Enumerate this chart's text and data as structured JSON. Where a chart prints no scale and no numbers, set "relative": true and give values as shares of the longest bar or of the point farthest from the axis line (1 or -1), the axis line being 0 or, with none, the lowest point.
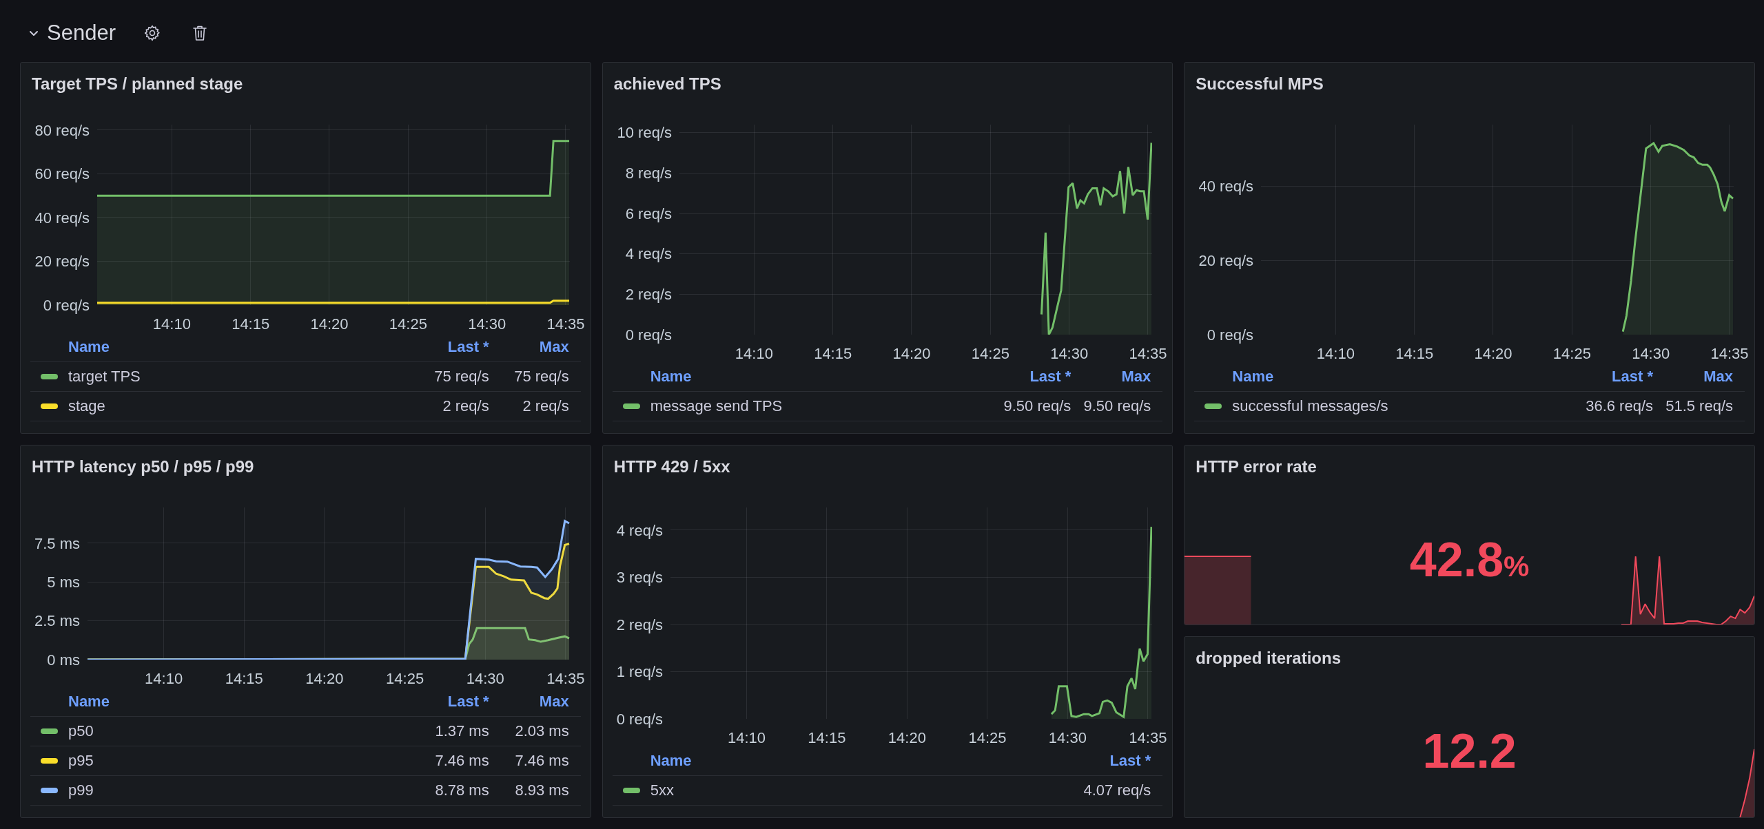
{
  "chart_data": [
    {
      "type": "other",
      "title": "Sender"
    },
    {
      "type": "area",
      "title": "Target TPS / planned stage",
      "series": [
        {
          "name": "target TPS",
          "color": "#73bf69",
          "x": [
            14.0877,
            14.5667,
            14.5703,
            14.587
          ],
          "values": [
            50,
            50,
            75,
            75
          ]
        },
        {
          "name": "stage",
          "color": "#fade2a",
          "x": [
            14.0877,
            14.5667,
            14.5703,
            14.587
          ],
          "values": [
            1,
            1,
            2,
            2
          ]
        }
      ],
      "xlim": [
        14.0877,
        14.5877
      ],
      "xticks": [
        {
          "value": 14.1667,
          "label": "14:10"
        },
        {
          "value": 14.25,
          "label": "14:15"
        },
        {
          "value": 14.3333,
          "label": "14:20"
        },
        {
          "value": 14.4167,
          "label": "14:25"
        },
        {
          "value": 14.5,
          "label": "14:30"
        },
        {
          "value": 14.5833,
          "label": "14:35"
        }
      ],
      "ylim": [
        0,
        82.5
      ],
      "yticks": [
        {
          "value": 0,
          "label": "0 req/s"
        },
        {
          "value": 20,
          "label": "20 req/s"
        },
        {
          "value": 40,
          "label": "40 req/s"
        },
        {
          "value": 60,
          "label": "60 req/s"
        },
        {
          "value": 80,
          "label": "80 req/s"
        }
      ],
      "grid": true,
      "legend": "bottom",
      "legend_title": "Name",
      "annotations": [
        "Last *",
        "Max",
        "75 req/s",
        "75 req/s",
        "2 req/s",
        "2 req/s"
      ]
    },
    {
      "type": "area",
      "title": "achieved TPS",
      "series": [
        {
          "name": "message send TPS",
          "color": "#73bf69",
          "x": [
            14.4707,
            14.475,
            14.4785,
            14.4823,
            14.4915,
            14.4993,
            14.5037,
            14.5083,
            14.5118,
            14.5158,
            14.5197,
            14.5245,
            14.5292,
            14.533,
            14.5365,
            14.5413,
            14.546,
            14.55,
            14.5538,
            14.5582,
            14.5625,
            14.5672,
            14.5712,
            14.575,
            14.579,
            14.583,
            14.587
          ],
          "values": [
            1.0,
            5.05,
            0,
            0.35,
            2.2,
            7.3,
            7.5,
            6.25,
            6.65,
            6.5,
            6.95,
            7.25,
            7.25,
            6.4,
            7.25,
            7.1,
            6.85,
            6.95,
            8.1,
            6.0,
            8.3,
            6.9,
            7.15,
            7.1,
            7.1,
            5.7,
            9.5
          ]
        }
      ],
      "xlim": [
        14.0877,
        14.5877
      ],
      "xticks": [
        {
          "value": 14.1667,
          "label": "14:10"
        },
        {
          "value": 14.25,
          "label": "14:15"
        },
        {
          "value": 14.3333,
          "label": "14:20"
        },
        {
          "value": 14.4167,
          "label": "14:25"
        },
        {
          "value": 14.5,
          "label": "14:30"
        },
        {
          "value": 14.5833,
          "label": "14:35"
        }
      ],
      "ylim": [
        0,
        10.4
      ],
      "yticks": [
        {
          "value": 0,
          "label": "0 req/s"
        },
        {
          "value": 2,
          "label": "2 req/s"
        },
        {
          "value": 4,
          "label": "4 req/s"
        },
        {
          "value": 6,
          "label": "6 req/s"
        },
        {
          "value": 8,
          "label": "8 req/s"
        },
        {
          "value": 10,
          "label": "10 req/s"
        }
      ],
      "grid": true,
      "legend": "bottom",
      "legend_title": "Name",
      "annotations": [
        "Last *",
        "Max",
        "9.50 req/s",
        "9.50 req/s"
      ]
    },
    {
      "type": "area",
      "title": "Successful MPS",
      "series": [
        {
          "name": "successful messages/s",
          "color": "#73bf69",
          "x": [
            14.4705,
            14.4743,
            14.4792,
            14.4832,
            14.4878,
            14.495,
            14.503,
            14.5082,
            14.5122,
            14.5202,
            14.528,
            14.5348,
            14.5408,
            14.5455,
            14.55,
            14.5547,
            14.5598,
            14.5627,
            14.5667,
            14.5707,
            14.5747,
            14.5782,
            14.583,
            14.587
          ],
          "values": [
            0.8,
            5.1,
            14.6,
            24.5,
            34.5,
            50.1,
            51.5,
            49.2,
            50.8,
            51.2,
            50.6,
            49.7,
            48.2,
            47.7,
            46.2,
            45.7,
            45.7,
            45.0,
            43.0,
            40.5,
            35.7,
            33.2,
            37.5,
            36.6
          ]
        }
      ],
      "xlim": [
        14.0877,
        14.5877
      ],
      "xticks": [
        {
          "value": 14.1667,
          "label": "14:10"
        },
        {
          "value": 14.25,
          "label": "14:15"
        },
        {
          "value": 14.3333,
          "label": "14:20"
        },
        {
          "value": 14.4167,
          "label": "14:25"
        },
        {
          "value": 14.5,
          "label": "14:30"
        },
        {
          "value": 14.5833,
          "label": "14:35"
        }
      ],
      "ylim": [
        0,
        56.5
      ],
      "yticks": [
        {
          "value": 0,
          "label": "0 req/s"
        },
        {
          "value": 20,
          "label": "20 req/s"
        },
        {
          "value": 40,
          "label": "40 req/s"
        }
      ],
      "grid": true,
      "legend": "bottom",
      "legend_title": "Name",
      "annotations": [
        "Last *",
        "Max",
        "36.6 req/s",
        "51.5 req/s"
      ]
    },
    {
      "type": "area",
      "title": "HTTP latency p50 / p95 / p99",
      "series": [
        {
          "name": "p50",
          "color": "#73bf69",
          "x": [
            14.0877,
            14.4793,
            14.4833,
            14.487,
            14.4913,
            14.5413,
            14.5452,
            14.5518,
            14.5575,
            14.5652,
            14.5748,
            14.5825,
            14.587
          ],
          "values": [
            0,
            0.05,
            1.0,
            1.3,
            2.03,
            2.03,
            1.3,
            1.25,
            1.15,
            1.25,
            1.4,
            1.5,
            1.37
          ]
        },
        {
          "name": "p95",
          "color": "#fade2a",
          "x": [
            14.0877,
            14.4793,
            14.4902,
            14.5037,
            14.5113,
            14.519,
            14.5267,
            14.5402,
            14.5478,
            14.5537,
            14.5613,
            14.5652,
            14.571,
            14.5748,
            14.5775,
            14.5825,
            14.587
          ],
          "values": [
            0,
            0.05,
            5.97,
            5.97,
            5.53,
            5.37,
            5.15,
            5.1,
            4.3,
            4.2,
            3.96,
            3.92,
            4.25,
            4.59,
            6.04,
            7.38,
            7.46
          ]
        },
        {
          "name": "p99",
          "color": "#8ab8ff",
          "x": [
            14.0877,
            14.4793,
            14.4902,
            14.5037,
            14.5113,
            14.5228,
            14.5363,
            14.5478,
            14.5537,
            14.5622,
            14.569,
            14.5757,
            14.5825,
            14.587
          ],
          "values": [
            0,
            0.05,
            6.49,
            6.44,
            6.33,
            6.31,
            6.0,
            5.97,
            5.93,
            5.32,
            5.82,
            6.49,
            8.93,
            8.78
          ]
        }
      ],
      "xlim": [
        14.0877,
        14.5877
      ],
      "xticks": [
        {
          "value": 14.1667,
          "label": "14:10"
        },
        {
          "value": 14.25,
          "label": "14:15"
        },
        {
          "value": 14.3333,
          "label": "14:20"
        },
        {
          "value": 14.4167,
          "label": "14:25"
        },
        {
          "value": 14.5,
          "label": "14:30"
        },
        {
          "value": 14.5833,
          "label": "14:35"
        }
      ],
      "ylim": [
        0,
        9.8
      ],
      "yticks": [
        {
          "value": 0,
          "label": "0 ms"
        },
        {
          "value": 2.5,
          "label": "2.5 ms"
        },
        {
          "value": 5,
          "label": "5 ms"
        },
        {
          "value": 7.5,
          "label": "7.5 ms"
        }
      ],
      "grid": true,
      "legend": "bottom",
      "legend_title": "Name",
      "annotations": [
        "Last *",
        "Max",
        "1.37 ms",
        "2.03 ms",
        "7.46 ms",
        "7.46 ms",
        "8.78 ms",
        "8.93 ms"
      ]
    },
    {
      "type": "area",
      "title": "HTTP 429 / 5xx",
      "series": [
        {
          "name": "5xx",
          "color": "#73bf69",
          "x": [
            14.4832,
            14.487,
            14.4908,
            14.4993,
            14.504,
            14.509,
            14.5168,
            14.5218,
            14.5253,
            14.533,
            14.5365,
            14.5412,
            14.5458,
            14.5505,
            14.5582,
            14.562,
            14.5663,
            14.5702,
            14.5748,
            14.5787,
            14.583,
            14.587
          ],
          "values": [
            0.1,
            0.18,
            0.69,
            0.69,
            0.06,
            0.04,
            0.1,
            0.1,
            0.06,
            0.12,
            0.36,
            0.39,
            0.34,
            0.14,
            0.04,
            0.69,
            0.86,
            0.63,
            1.49,
            1.22,
            1.37,
            4.07
          ]
        }
      ],
      "xlim": [
        14.0877,
        14.5877
      ],
      "xticks": [
        {
          "value": 14.1667,
          "label": "14:10"
        },
        {
          "value": 14.25,
          "label": "14:15"
        },
        {
          "value": 14.3333,
          "label": "14:20"
        },
        {
          "value": 14.4167,
          "label": "14:25"
        },
        {
          "value": 14.5,
          "label": "14:30"
        },
        {
          "value": 14.5833,
          "label": "14:35"
        }
      ],
      "ylim": [
        0,
        4.48
      ],
      "yticks": [
        {
          "value": 0,
          "label": "0 req/s"
        },
        {
          "value": 1,
          "label": "1 req/s"
        },
        {
          "value": 2,
          "label": "2 req/s"
        },
        {
          "value": 3,
          "label": "3 req/s"
        },
        {
          "value": 4,
          "label": "4 req/s"
        }
      ],
      "grid": true,
      "legend": "bottom",
      "legend_title": "Name",
      "annotations": [
        "Last *",
        "4.07 req/s"
      ]
    },
    {
      "type": "area",
      "title": "HTTP error rate",
      "relative": true,
      "categories": [
        null,
        null,
        null,
        null,
        null,
        null,
        null,
        null,
        null,
        null,
        null,
        null,
        null,
        null,
        null,
        null,
        null,
        null,
        null,
        null,
        null,
        null,
        null,
        null,
        null,
        null,
        null,
        null,
        null,
        null,
        null,
        null,
        null,
        null,
        null,
        null,
        null,
        null,
        null,
        null,
        null,
        null,
        null,
        null,
        null,
        null,
        null,
        null,
        null,
        null,
        null,
        null,
        null,
        null,
        null,
        null,
        null,
        null,
        null,
        null,
        null,
        null,
        null,
        null,
        null,
        null,
        null,
        null,
        null,
        null,
        null,
        null,
        null,
        null,
        null,
        null,
        null,
        null,
        null,
        null,
        null,
        null,
        null,
        null,
        null,
        null,
        null,
        null,
        null,
        null,
        null,
        null,
        null,
        null,
        null,
        null,
        null,
        null,
        null,
        null,
        null,
        null,
        null,
        null,
        null,
        null,
        null,
        null,
        null,
        null,
        null,
        null,
        null,
        null,
        null,
        null,
        null,
        null,
        null,
        null,
        null
      ],
      "series": [
        {
          "color": "#f2495c",
          "values": [
            1,
            1,
            1,
            1,
            1,
            1,
            1,
            1,
            1,
            1,
            1,
            1,
            1,
            1,
            1,
            null,
            null,
            null,
            null,
            null,
            null,
            null,
            null,
            null,
            null,
            null,
            null,
            null,
            null,
            null,
            null,
            null,
            null,
            null,
            null,
            null,
            null,
            null,
            null,
            null,
            null,
            null,
            null,
            null,
            null,
            null,
            null,
            null,
            null,
            null,
            null,
            null,
            null,
            null,
            null,
            null,
            null,
            null,
            null,
            null,
            null,
            null,
            null,
            null,
            null,
            null,
            null,
            null,
            null,
            null,
            null,
            null,
            null,
            null,
            null,
            null,
            null,
            null,
            null,
            null,
            null,
            null,
            null,
            null,
            null,
            null,
            null,
            null,
            null,
            null,
            null,
            null,
            null,
            null,
            null,
            null,
            null,
            null,
            null,
            null,
            null,
            null,
            null,
            null,
            null,
            null,
            null,
            null,
            null,
            null,
            null,
            null,
            null,
            null,
            null,
            null,
            null,
            null,
            null,
            null,
            null
          ]
        },
        {
          "color": "#f2495c",
          "values": [
            null,
            null,
            null,
            null,
            null,
            null,
            null,
            null,
            null,
            null,
            null,
            null,
            null,
            null,
            null,
            null,
            null,
            null,
            null,
            null,
            null,
            null,
            null,
            null,
            null,
            null,
            null,
            null,
            null,
            null,
            null,
            null,
            null,
            null,
            null,
            null,
            null,
            null,
            null,
            null,
            null,
            null,
            null,
            null,
            null,
            null,
            null,
            null,
            null,
            null,
            null,
            null,
            null,
            null,
            null,
            null,
            null,
            null,
            null,
            null,
            null,
            null,
            null,
            null,
            null,
            null,
            null,
            null,
            null,
            null,
            null,
            null,
            null,
            null,
            null,
            null,
            null,
            null,
            null,
            null,
            null,
            null,
            null,
            null,
            null,
            null,
            null,
            null,
            null,
            null,
            null,
            null,
            0,
            0,
            0,
            1,
            0.15,
            0.3,
            0.18,
            0.09,
            1,
            0.01,
            0.01,
            0.01,
            0.02,
            0.02,
            0.05,
            0.05,
            0.05,
            0.03,
            0.02,
            0.01,
            0,
            0,
            0.05,
            0.12,
            0.09,
            0.22,
            0.17,
            0.25,
            0.42
          ]
        }
      ],
      "annotations": [
        "42.8%"
      ]
    },
    {
      "type": "area",
      "title": "dropped iterations",
      "relative": true,
      "categories": [
        null,
        null,
        null,
        null,
        null,
        null,
        null,
        null,
        null,
        null,
        null,
        null,
        null,
        null,
        null,
        null,
        null,
        null,
        null,
        null,
        null,
        null,
        null,
        null,
        null,
        null,
        null,
        null,
        null,
        null,
        null,
        null,
        null,
        null,
        null,
        null,
        null,
        null,
        null,
        null,
        null,
        null,
        null,
        null,
        null,
        null,
        null,
        null,
        null,
        null,
        null,
        null,
        null,
        null,
        null,
        null,
        null,
        null,
        null,
        null,
        null,
        null,
        null,
        null,
        null,
        null,
        null,
        null,
        null,
        null,
        null,
        null,
        null,
        null,
        null,
        null,
        null,
        null,
        null,
        null,
        null,
        null,
        null,
        null,
        null,
        null,
        null,
        null,
        null,
        null,
        null,
        null,
        null,
        null,
        null,
        null,
        null,
        null,
        null,
        null,
        null,
        null,
        null,
        null,
        null,
        null,
        null,
        null,
        null,
        null,
        null,
        null,
        null,
        null,
        null,
        null,
        null,
        null,
        null,
        null,
        null
      ],
      "series": [
        {
          "color": "#f2495c",
          "values": [
            null,
            null,
            null,
            null,
            null,
            null,
            null,
            null,
            null,
            null,
            null,
            null,
            null,
            null,
            null,
            null,
            null,
            null,
            null,
            null,
            null,
            null,
            null,
            null,
            null,
            null,
            null,
            null,
            null,
            null,
            null,
            null,
            null,
            null,
            null,
            null,
            null,
            null,
            null,
            null,
            null,
            null,
            null,
            null,
            null,
            null,
            null,
            null,
            null,
            null,
            null,
            null,
            null,
            null,
            null,
            null,
            null,
            null,
            null,
            null,
            null,
            null,
            null,
            null,
            null,
            null,
            null,
            null,
            null,
            null,
            null,
            null,
            null,
            null,
            null,
            null,
            null,
            null,
            null,
            null,
            null,
            null,
            null,
            null,
            null,
            null,
            null,
            null,
            null,
            null,
            null,
            null,
            null,
            null,
            null,
            null,
            null,
            null,
            null,
            null,
            null,
            null,
            null,
            null,
            null,
            null,
            null,
            null,
            null,
            null,
            null,
            null,
            null,
            null,
            null,
            null,
            null,
            0,
            0.26,
            0.57,
            1
          ]
        }
      ],
      "annotations": [
        "12.2"
      ]
    }
  ]
}
